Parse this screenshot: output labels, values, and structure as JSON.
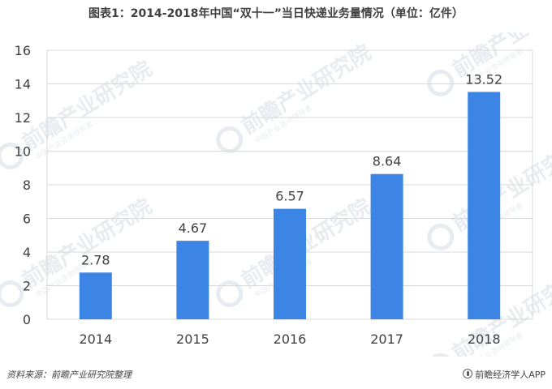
{
  "title": "图表1：2014-2018年中国“双十一”当日快递业务量情况（单位：亿件）",
  "source": "资料来源：前瞻产业研究院整理",
  "brand": "前瞻经济学人APP",
  "watermark": {
    "main": "前瞻产业研究院",
    "sub": "中国产业咨询领导者"
  },
  "colors": {
    "bar": "#3c85e4",
    "grid": "#d9d9d9",
    "text": "#404040",
    "watermark": "#e8ecf1"
  },
  "chart_data": {
    "type": "bar",
    "categories": [
      "2014",
      "2015",
      "2016",
      "2017",
      "2018"
    ],
    "values": [
      2.78,
      4.67,
      6.57,
      8.64,
      13.52
    ],
    "value_labels": [
      "2.78",
      "4.67",
      "6.57",
      "8.64",
      "13.52"
    ],
    "ylim": [
      0,
      16
    ],
    "yticks": [
      0,
      2,
      4,
      6,
      8,
      10,
      12,
      14,
      16
    ],
    "grid": true,
    "legend": "none",
    "xlabel": "",
    "ylabel": ""
  }
}
